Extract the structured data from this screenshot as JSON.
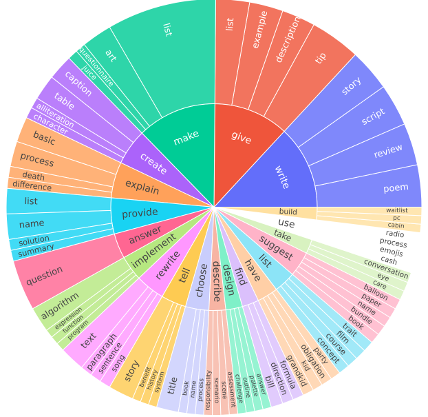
{
  "chart_data": {
    "type": "sunburst",
    "title": "",
    "start_angle_deg": 0,
    "direction": "counterclockwise",
    "root": [
      {
        "verb": "write",
        "value": 10,
        "color": "#636efa",
        "children": [
          {
            "label": "poem",
            "value": 2.5
          },
          {
            "label": "review",
            "value": 2.5
          },
          {
            "label": "script",
            "value": 2.5
          },
          {
            "label": "story",
            "value": 2.5
          }
        ]
      },
      {
        "verb": "give",
        "value": 9,
        "color": "#ef553b",
        "children": [
          {
            "label": "tip",
            "value": 3
          },
          {
            "label": "description",
            "value": 2
          },
          {
            "label": "example",
            "value": 2
          },
          {
            "label": "list",
            "value": 2
          }
        ]
      },
      {
        "verb": "make",
        "value": 9.5,
        "color": "#00cc96",
        "children": [
          {
            "label": "list",
            "value": 6.5
          },
          {
            "label": "art",
            "value": 1.8
          },
          {
            "label": "questionnaire",
            "value": 0.6
          },
          {
            "label": "juice",
            "value": 0.6
          }
        ]
      },
      {
        "verb": "create",
        "value": 4.3,
        "color": "#ab63fa",
        "children": [
          {
            "label": "caption",
            "value": 1.5
          },
          {
            "label": "table",
            "value": 1.5
          },
          {
            "label": "alliteration",
            "value": 0.65
          },
          {
            "label": "character",
            "value": 0.65
          }
        ]
      },
      {
        "verb": "explain",
        "value": 4.3,
        "color": "#ffa15a",
        "children": [
          {
            "label": "basic",
            "value": 1.5
          },
          {
            "label": "process",
            "value": 1.5
          },
          {
            "label": "death",
            "value": 0.65
          },
          {
            "label": "difference",
            "value": 0.65
          }
        ]
      },
      {
        "verb": "provide",
        "value": 4.3,
        "color": "#19d3f3",
        "children": [
          {
            "label": "list",
            "value": 1.5
          },
          {
            "label": "name",
            "value": 1.5
          },
          {
            "label": "solution",
            "value": 0.65
          },
          {
            "label": "summary",
            "value": 0.65
          }
        ]
      },
      {
        "verb": "answer",
        "value": 3,
        "color": "#ff6692",
        "children": [
          {
            "label": "question",
            "value": 3
          }
        ]
      },
      {
        "verb": "implement",
        "value": 3,
        "color": "#b6e880",
        "children": [
          {
            "label": "algorithm",
            "value": 1.5
          },
          {
            "label": "expression",
            "value": 0.5
          },
          {
            "label": "function",
            "value": 0.5
          },
          {
            "label": "program",
            "value": 0.5
          }
        ]
      },
      {
        "verb": "rewrite",
        "value": 3.5,
        "color": "#ff97ff",
        "children": [
          {
            "label": "text",
            "value": 1.5
          },
          {
            "label": "paragraph",
            "value": 0.7
          },
          {
            "label": "sentence",
            "value": 0.65
          },
          {
            "label": "song",
            "value": 0.65
          }
        ]
      },
      {
        "verb": "tell",
        "value": 3,
        "color": "#fecb52",
        "children": [
          {
            "label": "story",
            "value": 1.5
          },
          {
            "label": "benefit",
            "value": 0.5
          },
          {
            "label": "history",
            "value": 0.5
          },
          {
            "label": "system",
            "value": 0.5
          }
        ]
      },
      {
        "verb": "choose",
        "value": 2.8,
        "color": "#c9cdfc",
        "children": [
          {
            "label": "title",
            "value": 1.3
          },
          {
            "label": "book",
            "value": 0.5
          },
          {
            "label": "name",
            "value": 0.5
          },
          {
            "label": "process",
            "value": 0.5
          }
        ]
      },
      {
        "verb": "describe",
        "value": 2,
        "color": "#f7b4a3",
        "children": [
          {
            "label": "responsibility",
            "value": 0.5
          },
          {
            "label": "scenario",
            "value": 0.5
          },
          {
            "label": "scene",
            "value": 0.5
          },
          {
            "label": "assessment",
            "value": 0.5
          }
        ]
      },
      {
        "verb": "design",
        "value": 2,
        "color": "#7ff0c8",
        "children": [
          {
            "label": "challenge",
            "value": 0.5
          },
          {
            "label": "outline",
            "value": 0.5
          },
          {
            "label": "palette",
            "value": 0.5
          },
          {
            "label": "answer",
            "value": 0.5
          }
        ]
      },
      {
        "verb": "find",
        "value": 2,
        "color": "#dbc0fc",
        "children": [
          {
            "label": "bill",
            "value": 0.7
          },
          {
            "label": "direction",
            "value": 0.65
          },
          {
            "label": "formula",
            "value": 0.65
          }
        ]
      },
      {
        "verb": "have",
        "value": 2.5,
        "color": "#ffcfa6",
        "children": [
          {
            "label": "grandkid",
            "value": 0.65
          },
          {
            "label": "kid",
            "value": 0.6
          },
          {
            "label": "obligation",
            "value": 0.65
          },
          {
            "label": "party",
            "value": 0.6
          }
        ]
      },
      {
        "verb": "list",
        "value": 2.6,
        "color": "#8ce4f7",
        "children": [
          {
            "label": "concept",
            "value": 0.65
          },
          {
            "label": "course",
            "value": 0.65
          },
          {
            "label": "film",
            "value": 0.65
          },
          {
            "label": "trait",
            "value": 0.65
          }
        ]
      },
      {
        "verb": "suggest",
        "value": 3,
        "color": "#ffb3c8",
        "children": [
          {
            "label": "book",
            "value": 0.6
          },
          {
            "label": "bundle",
            "value": 0.6
          },
          {
            "label": "name",
            "value": 0.6
          },
          {
            "label": "paper",
            "value": 0.6
          },
          {
            "label": "balloon",
            "value": 0.6
          }
        ]
      },
      {
        "verb": "take",
        "value": 1.7,
        "color": "#d8f2c0",
        "children": [
          {
            "label": "care",
            "value": 0.55
          },
          {
            "label": "eye",
            "value": 0.55
          },
          {
            "label": "conversation",
            "value": 0.6
          }
        ]
      },
      {
        "verb": "use",
        "value": 2.4,
        "color": "#ffffff",
        "children": [
          {
            "label": "cash",
            "value": 0.6
          },
          {
            "label": "emojis",
            "value": 0.6
          },
          {
            "label": "process",
            "value": 0.6
          },
          {
            "label": "radio",
            "value": 0.6
          }
        ]
      },
      {
        "verb": "build",
        "value": 1.5,
        "color": "#ffe0a0",
        "children": [
          {
            "label": "cabin",
            "value": 0.5
          },
          {
            "label": "pc",
            "value": 0.5
          },
          {
            "label": "waitlist",
            "value": 0.5
          }
        ]
      }
    ]
  }
}
